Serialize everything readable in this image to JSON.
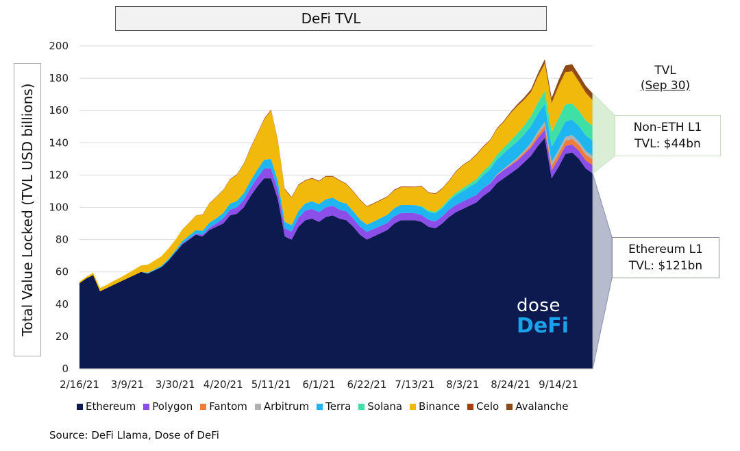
{
  "chart_data": {
    "type": "area",
    "stacked": true,
    "title": "DeFi TVL",
    "ylabel": "Total Value Locked (TVL USD billions)",
    "xlabel": "",
    "ylim": [
      0,
      200
    ],
    "yticks": [
      0,
      20,
      40,
      60,
      80,
      100,
      120,
      140,
      160,
      180,
      200
    ],
    "x_tick_labels": [
      "2/16/21",
      "3/9/21",
      "3/30/21",
      "4/20/21",
      "5/11/21",
      "6/1/21",
      "6/22/21",
      "7/13/21",
      "8/3/21",
      "8/24/21",
      "9/14/21"
    ],
    "grid": "horizontal",
    "legend_position": "bottom",
    "dates": [
      "2/16/21",
      "2/19/21",
      "2/22/21",
      "2/25/21",
      "2/28/21",
      "3/3/21",
      "3/6/21",
      "3/9/21",
      "3/12/21",
      "3/15/21",
      "3/18/21",
      "3/21/21",
      "3/24/21",
      "3/27/21",
      "3/30/21",
      "4/2/21",
      "4/5/21",
      "4/8/21",
      "4/11/21",
      "4/14/21",
      "4/17/21",
      "4/20/21",
      "4/23/21",
      "4/26/21",
      "4/29/21",
      "5/2/21",
      "5/5/21",
      "5/8/21",
      "5/11/21",
      "5/14/21",
      "5/17/21",
      "5/20/21",
      "5/23/21",
      "5/26/21",
      "5/29/21",
      "6/1/21",
      "6/4/21",
      "6/7/21",
      "6/10/21",
      "6/13/21",
      "6/16/21",
      "6/19/21",
      "6/22/21",
      "6/25/21",
      "6/28/21",
      "7/1/21",
      "7/4/21",
      "7/7/21",
      "7/10/21",
      "7/13/21",
      "7/16/21",
      "7/19/21",
      "7/22/21",
      "7/25/21",
      "7/28/21",
      "7/31/21",
      "8/3/21",
      "8/6/21",
      "8/9/21",
      "8/12/21",
      "8/15/21",
      "8/18/21",
      "8/21/21",
      "8/24/21",
      "8/27/21",
      "8/30/21",
      "9/2/21",
      "9/5/21",
      "9/8/21",
      "9/11/21",
      "9/14/21",
      "9/17/21",
      "9/20/21",
      "9/23/21",
      "9/26/21",
      "9/30/21"
    ],
    "series": [
      {
        "name": "Ethereum",
        "color": "#0d1a4f",
        "values": [
          53,
          56,
          58,
          48,
          50,
          52,
          54,
          56,
          58,
          60,
          59,
          61,
          63,
          67,
          72,
          77,
          80,
          83,
          82,
          86,
          88,
          90,
          95,
          96,
          100,
          107,
          113,
          118,
          118,
          105,
          82,
          80,
          88,
          92,
          93,
          91,
          94,
          95,
          93,
          92,
          88,
          83,
          80,
          82,
          84,
          86,
          90,
          92,
          92,
          92,
          91,
          88,
          87,
          90,
          94,
          97,
          99,
          101,
          103,
          107,
          110,
          115,
          118,
          121,
          124,
          128,
          132,
          138,
          143,
          118,
          125,
          133,
          134,
          130,
          124,
          121
        ]
      },
      {
        "name": "Polygon",
        "color": "#8b4ee8",
        "values": [
          0,
          0,
          0,
          0,
          0,
          0,
          0,
          0,
          0,
          0,
          0,
          0,
          0,
          0,
          0,
          0.5,
          0.6,
          0.8,
          1,
          1.5,
          2,
          3,
          3.5,
          4,
          4.5,
          5,
          5.5,
          6,
          6,
          5.5,
          5,
          5,
          5.5,
          6,
          6,
          6,
          6,
          6,
          5.5,
          5.5,
          5,
          5,
          4.8,
          4.6,
          4.5,
          4.4,
          4.5,
          4.5,
          4.5,
          4.4,
          4.3,
          4.3,
          4.3,
          4.4,
          4.5,
          4.5,
          4.6,
          4.6,
          4.7,
          4.8,
          4.8,
          4.9,
          5,
          5,
          5,
          5,
          5,
          5,
          5,
          5,
          5,
          5,
          5,
          5,
          5,
          5
        ]
      },
      {
        "name": "Fantom",
        "color": "#f07c3a",
        "values": [
          0,
          0,
          0,
          0,
          0,
          0,
          0,
          0,
          0,
          0,
          0,
          0,
          0,
          0,
          0,
          0,
          0,
          0,
          0,
          0,
          0,
          0,
          0,
          0,
          0,
          0,
          0,
          0,
          0,
          0,
          0,
          0,
          0,
          0,
          0,
          0,
          0,
          0,
          0,
          0,
          0,
          0,
          0,
          0,
          0,
          0,
          0,
          0,
          0,
          0,
          0,
          0,
          0,
          0,
          0,
          0,
          0,
          0,
          0,
          0,
          0,
          0.2,
          0.3,
          0.5,
          0.8,
          1,
          1.5,
          2,
          2.5,
          2.5,
          3,
          3.2,
          3.4,
          3.5,
          3.6,
          3.6
        ]
      },
      {
        "name": "Arbitrum",
        "color": "#b0b0b0",
        "values": [
          0,
          0,
          0,
          0,
          0,
          0,
          0,
          0,
          0,
          0,
          0,
          0,
          0,
          0,
          0,
          0,
          0,
          0,
          0,
          0,
          0,
          0,
          0,
          0,
          0,
          0,
          0,
          0,
          0,
          0,
          0,
          0,
          0,
          0,
          0,
          0,
          0,
          0,
          0,
          0,
          0,
          0,
          0,
          0,
          0,
          0,
          0,
          0,
          0,
          0,
          0,
          0,
          0,
          0,
          0,
          0,
          0,
          0,
          0,
          0,
          0.2,
          0.4,
          0.6,
          0.8,
          1,
          1.2,
          1.5,
          2,
          2.5,
          2.5,
          2.5,
          2.5,
          2.4,
          2.3,
          2.3,
          2.2
        ]
      },
      {
        "name": "Terra",
        "color": "#1fb5f0",
        "values": [
          0,
          0,
          0,
          0,
          0,
          0,
          0,
          0,
          0,
          0,
          0.5,
          0.6,
          0.8,
          1,
          1.2,
          1.5,
          1.8,
          2,
          2.5,
          3,
          3.2,
          3.5,
          3.8,
          4,
          4.2,
          4.5,
          5,
          5.5,
          6,
          5.5,
          4,
          4,
          4.2,
          4.5,
          4.8,
          5,
          5,
          5,
          5,
          4.8,
          4.6,
          4.5,
          4.5,
          4.6,
          4.8,
          5,
          5,
          5,
          5,
          5,
          5,
          5,
          5,
          5,
          5.5,
          6,
          6.5,
          7,
          7.5,
          8,
          8.5,
          9,
          9.5,
          10,
          10,
          10,
          10.5,
          11,
          11,
          9.5,
          9.5,
          9.5,
          9.5,
          9.5,
          9.5,
          9.5
        ]
      },
      {
        "name": "Solana",
        "color": "#3fe0a5",
        "values": [
          0,
          0,
          0,
          0,
          0,
          0,
          0,
          0,
          0,
          0,
          0,
          0,
          0,
          0,
          0,
          0,
          0,
          0,
          0,
          0,
          0,
          0,
          0,
          0,
          0,
          0,
          0,
          0,
          0,
          0,
          0,
          0,
          0,
          0,
          0,
          0,
          0,
          0,
          0,
          0,
          0,
          0,
          0,
          0,
          0,
          0,
          0,
          0,
          0,
          0,
          0.5,
          0.7,
          0.9,
          1,
          1.2,
          1.5,
          1.8,
          2,
          2.2,
          2.5,
          2.8,
          3,
          3.5,
          4,
          5,
          5.5,
          6,
          7,
          8,
          9,
          10,
          10.5,
          10,
          9.5,
          9.5,
          9
        ]
      },
      {
        "name": "Binance",
        "color": "#f0b90b",
        "values": [
          1,
          1,
          1.5,
          2,
          2,
          2.5,
          2.5,
          3,
          3.5,
          4,
          5,
          5.5,
          6,
          6.5,
          6.5,
          7,
          8,
          9,
          10,
          12,
          13,
          14,
          15,
          16,
          18,
          20,
          22,
          25,
          30,
          25,
          20,
          17,
          16,
          14,
          14,
          14,
          14,
          13,
          13,
          12,
          12,
          12,
          11,
          11,
          11,
          11,
          11,
          11,
          11,
          11,
          12,
          11,
          11,
          11,
          11,
          13,
          14,
          14,
          15,
          15,
          15,
          16,
          16,
          17,
          17,
          16,
          15,
          16,
          17,
          18,
          20,
          20,
          20,
          18,
          17,
          16
        ]
      },
      {
        "name": "Celo",
        "color": "#a63d0a",
        "values": [
          0,
          0,
          0,
          0,
          0,
          0,
          0,
          0,
          0,
          0,
          0,
          0,
          0,
          0,
          0,
          0.1,
          0.1,
          0.1,
          0.2,
          0.2,
          0.3,
          0.3,
          0.3,
          0.4,
          0.4,
          0.5,
          0.5,
          0.5,
          0.5,
          0.5,
          0.5,
          0.4,
          0.4,
          0.4,
          0.4,
          0.4,
          0.4,
          0.4,
          0.4,
          0.4,
          0.4,
          0.4,
          0.4,
          0.4,
          0.4,
          0.4,
          0.4,
          0.4,
          0.4,
          0.4,
          0.4,
          0.4,
          0.4,
          0.4,
          0.4,
          0.4,
          0.4,
          0.4,
          0.5,
          0.5,
          0.5,
          0.5,
          0.5,
          0.5,
          0.6,
          0.6,
          0.6,
          0.6,
          0.7,
          0.7,
          0.7,
          0.7,
          0.8,
          0.8,
          0.8,
          0.8
        ]
      },
      {
        "name": "Avalanche",
        "color": "#8b4a16",
        "values": [
          0,
          0,
          0,
          0,
          0,
          0,
          0,
          0,
          0,
          0,
          0,
          0,
          0,
          0,
          0,
          0,
          0,
          0,
          0,
          0,
          0,
          0,
          0,
          0,
          0,
          0,
          0,
          0,
          0,
          0,
          0,
          0,
          0,
          0,
          0,
          0,
          0,
          0,
          0,
          0,
          0,
          0,
          0,
          0,
          0,
          0,
          0,
          0,
          0,
          0,
          0,
          0,
          0,
          0,
          0,
          0,
          0,
          0,
          0,
          0,
          0,
          0,
          0.2,
          0.3,
          0.5,
          0.8,
          1,
          1.5,
          2,
          2.5,
          3,
          3.5,
          3.5,
          3.5,
          3.5,
          3.5
        ]
      }
    ]
  },
  "tvl_header": {
    "line1": "TVL",
    "line2": "(Sep 30)"
  },
  "callouts": {
    "non_eth": {
      "line1": "Non-ETH L1",
      "line2": "TVL:  $44bn"
    },
    "eth": {
      "line1": "Ethereum L1",
      "line2": "TVL:  $121bn"
    }
  },
  "logo": {
    "line1": "dose",
    "line2": "DeFi"
  },
  "source": "Source: DeFi Llama, Dose of DeFi"
}
